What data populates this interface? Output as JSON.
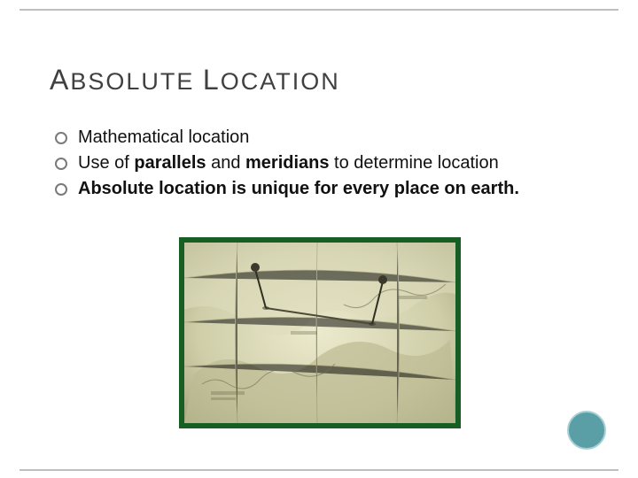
{
  "title": {
    "word1_cap": "A",
    "word1_rest": "BSOLUTE",
    "word2_cap": "L",
    "word2_rest": "OCATION"
  },
  "bullets": [
    {
      "runs": [
        {
          "text": "Mathematical location",
          "bold": false
        }
      ]
    },
    {
      "runs": [
        {
          "text": "Use of ",
          "bold": false
        },
        {
          "text": "parallels",
          "bold": true
        },
        {
          "text": " and ",
          "bold": false
        },
        {
          "text": "meridians",
          "bold": true
        },
        {
          "text": " to determine location",
          "bold": false
        }
      ]
    },
    {
      "runs": [
        {
          "text": "Absolute location is unique for every place on earth.",
          "bold": true
        }
      ]
    }
  ],
  "image": {
    "frame_border_color": "#175e24",
    "bg_color": "#d6d6b8",
    "map_tones": {
      "base": "#c9c9a8",
      "light": "#e7e6cf",
      "dark": "#8f8e6e",
      "line": "#6f6e52",
      "pin": "#3a3a2c"
    },
    "description": "sepia map with two pins and a line"
  },
  "accent_circle": {
    "fill": "#5a9ea6",
    "border": "#a8cfd5"
  },
  "frame_border_color": "#bfbfbf"
}
